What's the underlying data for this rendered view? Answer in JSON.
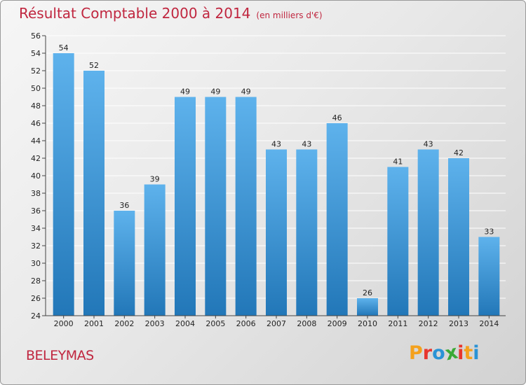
{
  "title": "Résultat Comptable 2000 à 2014",
  "subtitle": "(en milliers d'€)",
  "commune": "BELEYMAS",
  "logo": {
    "letters": [
      "P",
      "r",
      "o",
      "x",
      "i",
      "t",
      "i"
    ],
    "colors": [
      "#f4a11d",
      "#e8362e",
      "#2a93d5",
      "#3aa935",
      "#e8362e",
      "#f4a11d",
      "#2a93d5"
    ]
  },
  "colors": {
    "bar_top": "#5eb2ec",
    "bar_bottom": "#2277b8",
    "title": "#c0263f"
  },
  "chart_data": {
    "type": "bar",
    "title": "Résultat Comptable 2000 à 2014",
    "categories": [
      "2000",
      "2001",
      "2002",
      "2003",
      "2004",
      "2005",
      "2006",
      "2007",
      "2008",
      "2009",
      "2010",
      "2011",
      "2012",
      "2013",
      "2014"
    ],
    "values": [
      54,
      52,
      36,
      39,
      49,
      49,
      49,
      43,
      43,
      46,
      26,
      41,
      43,
      42,
      33
    ],
    "ylim": [
      24,
      56
    ],
    "yticks": [
      24,
      26,
      28,
      30,
      32,
      34,
      36,
      38,
      40,
      42,
      44,
      46,
      48,
      50,
      52,
      54,
      56
    ],
    "grid": true,
    "legend": "none"
  }
}
